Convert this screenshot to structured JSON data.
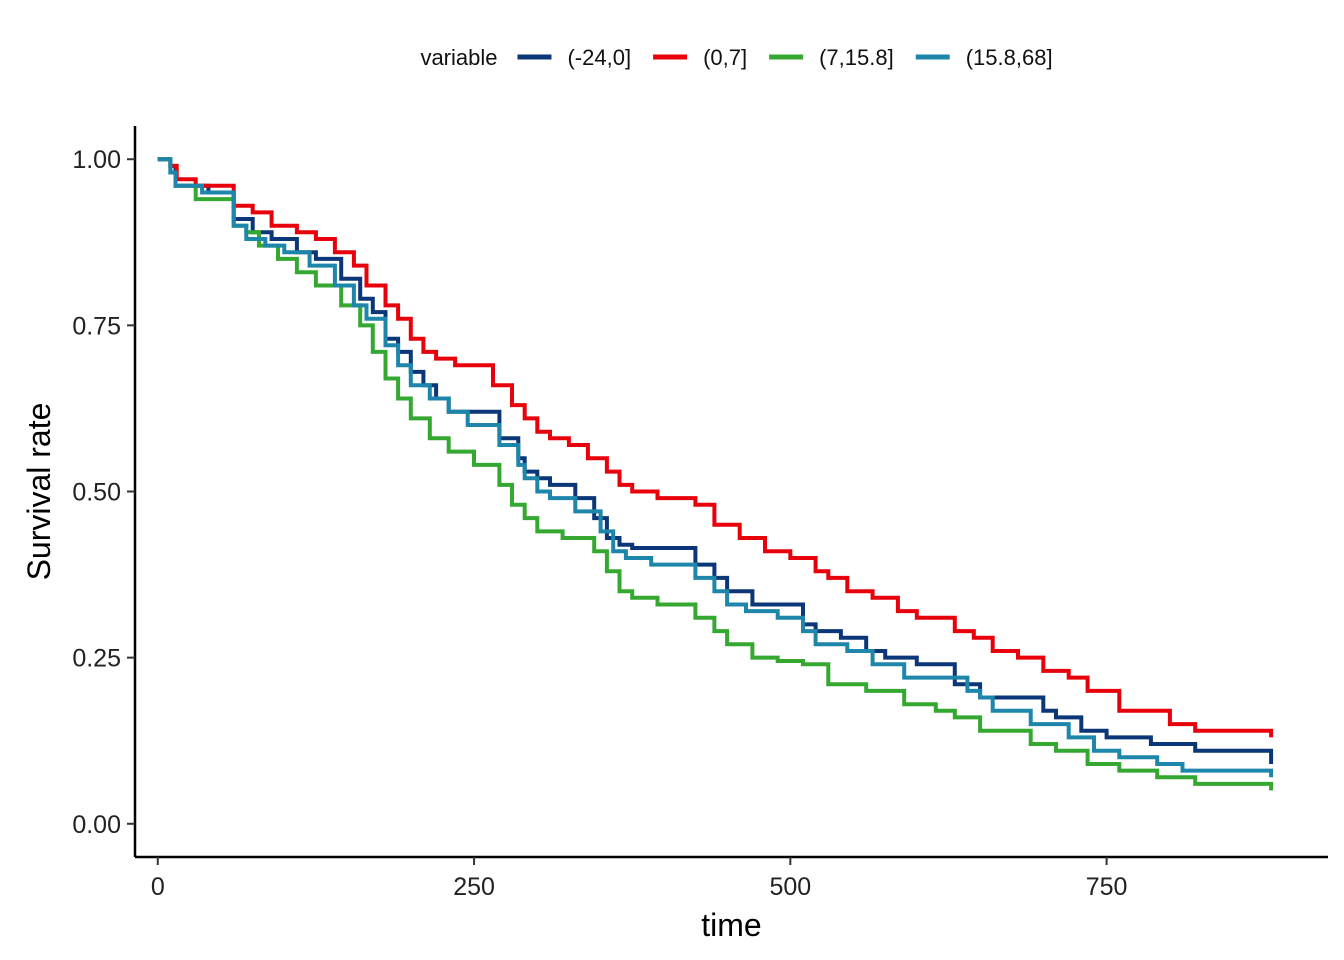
{
  "chart_data": {
    "type": "line",
    "step": true,
    "title": "",
    "xlabel": "time",
    "ylabel": "Survival rate",
    "xlim": [
      -18,
      925
    ],
    "ylim": [
      -0.05,
      1.05
    ],
    "x_ticks": [
      0,
      250,
      500,
      750
    ],
    "x_tick_labels": [
      "0",
      "250",
      "500",
      "750"
    ],
    "y_ticks": [
      0,
      0.25,
      0.5,
      0.75,
      1
    ],
    "y_tick_labels": [
      "0.00",
      "0.25",
      "0.50",
      "0.75",
      "1.00"
    ],
    "grid": false,
    "legend": {
      "title": "variable",
      "position": "top"
    },
    "series": [
      {
        "name": "(-24,0]",
        "color": "#0b3677",
        "x": [
          0,
          10,
          14,
          40,
          60,
          75,
          90,
          110,
          125,
          145,
          160,
          170,
          180,
          190,
          200,
          210,
          220,
          230,
          245,
          270,
          285,
          290,
          300,
          310,
          330,
          345,
          355,
          365,
          375,
          405,
          425,
          440,
          450,
          470,
          510,
          520,
          540,
          560,
          575,
          600,
          630,
          650,
          675,
          700,
          710,
          730,
          750,
          785,
          820,
          880
        ],
        "y": [
          1.0,
          0.99,
          0.96,
          0.95,
          0.91,
          0.89,
          0.88,
          0.86,
          0.85,
          0.82,
          0.79,
          0.77,
          0.73,
          0.71,
          0.68,
          0.66,
          0.64,
          0.62,
          0.62,
          0.58,
          0.55,
          0.53,
          0.52,
          0.51,
          0.49,
          0.46,
          0.43,
          0.42,
          0.415,
          0.415,
          0.39,
          0.37,
          0.35,
          0.33,
          0.3,
          0.29,
          0.28,
          0.26,
          0.25,
          0.24,
          0.21,
          0.19,
          0.19,
          0.17,
          0.16,
          0.14,
          0.13,
          0.12,
          0.11,
          0.09
        ]
      },
      {
        "name": "(0,7]",
        "color": "#e8000b",
        "x": [
          0,
          10,
          15,
          30,
          60,
          75,
          90,
          110,
          125,
          140,
          155,
          165,
          180,
          190,
          200,
          210,
          220,
          235,
          265,
          280,
          290,
          300,
          310,
          325,
          340,
          355,
          365,
          375,
          395,
          425,
          440,
          460,
          480,
          500,
          520,
          530,
          545,
          565,
          585,
          600,
          630,
          645,
          660,
          680,
          700,
          720,
          735,
          760,
          800,
          820,
          880
        ],
        "y": [
          1.0,
          0.99,
          0.97,
          0.96,
          0.93,
          0.92,
          0.9,
          0.89,
          0.88,
          0.86,
          0.84,
          0.81,
          0.78,
          0.76,
          0.73,
          0.71,
          0.7,
          0.69,
          0.66,
          0.63,
          0.61,
          0.59,
          0.58,
          0.57,
          0.55,
          0.53,
          0.51,
          0.5,
          0.49,
          0.48,
          0.45,
          0.43,
          0.41,
          0.4,
          0.38,
          0.37,
          0.35,
          0.34,
          0.32,
          0.31,
          0.29,
          0.28,
          0.26,
          0.25,
          0.23,
          0.22,
          0.2,
          0.17,
          0.15,
          0.14,
          0.13
        ]
      },
      {
        "name": "(7,15.8]",
        "color": "#35a831",
        "x": [
          0,
          10,
          14,
          30,
          60,
          70,
          80,
          95,
          110,
          125,
          145,
          160,
          170,
          180,
          190,
          200,
          215,
          230,
          250,
          270,
          280,
          290,
          300,
          320,
          345,
          355,
          365,
          375,
          395,
          425,
          440,
          450,
          470,
          490,
          510,
          530,
          560,
          590,
          615,
          630,
          650,
          690,
          710,
          735,
          760,
          790,
          820,
          880
        ],
        "y": [
          1.0,
          0.98,
          0.96,
          0.94,
          0.9,
          0.89,
          0.87,
          0.85,
          0.83,
          0.81,
          0.78,
          0.75,
          0.71,
          0.67,
          0.64,
          0.61,
          0.58,
          0.56,
          0.54,
          0.51,
          0.48,
          0.46,
          0.44,
          0.43,
          0.41,
          0.38,
          0.35,
          0.34,
          0.33,
          0.31,
          0.29,
          0.27,
          0.25,
          0.245,
          0.24,
          0.21,
          0.2,
          0.18,
          0.17,
          0.16,
          0.14,
          0.12,
          0.11,
          0.09,
          0.08,
          0.07,
          0.06,
          0.05
        ]
      },
      {
        "name": "(15.8,68]",
        "color": "#1e86ab",
        "x": [
          0,
          10,
          14,
          35,
          60,
          70,
          85,
          100,
          120,
          140,
          155,
          165,
          180,
          190,
          200,
          215,
          230,
          245,
          270,
          285,
          290,
          300,
          310,
          330,
          350,
          360,
          370,
          390,
          425,
          440,
          450,
          465,
          490,
          510,
          520,
          545,
          565,
          590,
          640,
          650,
          660,
          690,
          720,
          740,
          760,
          790,
          810,
          880
        ],
        "y": [
          1.0,
          0.98,
          0.96,
          0.95,
          0.9,
          0.88,
          0.87,
          0.86,
          0.84,
          0.81,
          0.78,
          0.76,
          0.72,
          0.69,
          0.66,
          0.64,
          0.62,
          0.6,
          0.57,
          0.54,
          0.52,
          0.5,
          0.49,
          0.47,
          0.44,
          0.41,
          0.4,
          0.39,
          0.37,
          0.35,
          0.33,
          0.32,
          0.31,
          0.29,
          0.27,
          0.26,
          0.24,
          0.22,
          0.2,
          0.19,
          0.17,
          0.15,
          0.13,
          0.11,
          0.1,
          0.09,
          0.08,
          0.07
        ]
      }
    ]
  }
}
